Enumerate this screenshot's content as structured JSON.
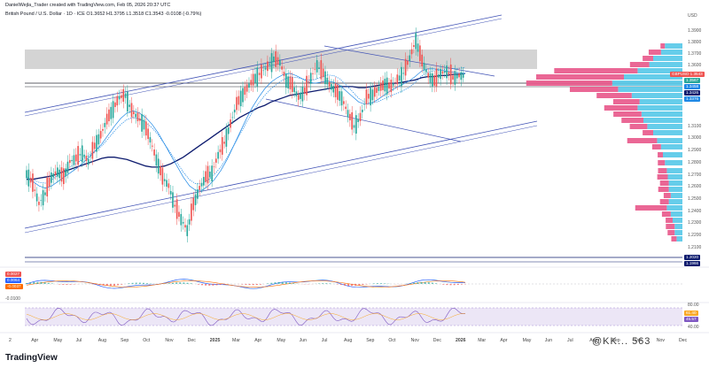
{
  "header": {
    "attribution": "DanielWejla_Trader created with TradingView.com, Feb 05, 2026 20:37 UTC",
    "symbol_line": "British Pound / U.S. Dollar · 1D · ICE  O1.3652  H1.3795  L1.3518  C1.3543  -0.0108 (-0.79%)"
  },
  "colors": {
    "price_up": "#26a69a",
    "price_down": "#ef5350",
    "channel": "#3f51b5",
    "ma_long": "#0d1b6e",
    "ma_short": "#1e88e5",
    "resistance_zone": "#cccccc",
    "profile_buy": "#55c8e8",
    "profile_sell": "#e8578a",
    "rsi_band": "#ece6f6"
  },
  "axis": {
    "currency": "USD",
    "price_ticks": [
      "1.3900",
      "1.3800",
      "1.3700",
      "1.3600",
      "1.3100",
      "1.3000",
      "1.2900",
      "1.2800",
      "1.2700",
      "1.2600",
      "1.2500",
      "1.2400",
      "1.2300",
      "1.2200",
      "1.2100"
    ],
    "months": [
      "2",
      "Apr",
      "May",
      "Jul",
      "Aug",
      "Sep",
      "Oct",
      "Nov",
      "Dec",
      "2025",
      "Mar",
      "Apr",
      "May",
      "Jun",
      "Jul",
      "Aug",
      "Sep",
      "Oct",
      "Nov",
      "Dec",
      "2026",
      "Mar",
      "Apr",
      "May",
      "Jun",
      "Jul",
      "Aug",
      "Sep",
      "Oct",
      "Nov",
      "Dec"
    ]
  },
  "price_tags": [
    {
      "label": "GBPUSD  1.3543",
      "color": "#ef5350"
    },
    {
      "label": "1.3567",
      "color": "#26a69a"
    },
    {
      "label": "1.3458",
      "color": "#1e88e5"
    },
    {
      "label": "1.3426",
      "color": "#0d1b6e"
    },
    {
      "label": "1.3376",
      "color": "#1e88e5"
    },
    {
      "label": "1.2020",
      "color": "#0d1b6e"
    },
    {
      "label": "1.1966",
      "color": "#0d1b6e"
    }
  ],
  "macd": {
    "tags": [
      "0.0027",
      "0.0064",
      "-0.0037"
    ],
    "tick": "-0.0100"
  },
  "rsi": {
    "ticks": [
      "80.00",
      "40.00"
    ],
    "tags": [
      "61.40",
      "45.57"
    ]
  },
  "brand": "TradingView",
  "watermark": "@KK... 563",
  "chart_data": {
    "type": "line",
    "title": "British Pound / U.S. Dollar · 1D · ICE",
    "ylabel": "USD",
    "ylim": [
      1.19,
      1.4
    ],
    "x": [
      0,
      2,
      4,
      6,
      8,
      10,
      12,
      14,
      16,
      18,
      20,
      22,
      24,
      26,
      28,
      30,
      32,
      34,
      36,
      38,
      40,
      42,
      44,
      46,
      48,
      50,
      52,
      54,
      56,
      58,
      60,
      62,
      64,
      66,
      68,
      70,
      72,
      74,
      76,
      78,
      80,
      82,
      84,
      86,
      88,
      90,
      92,
      94,
      96,
      98,
      100,
      102,
      104,
      106,
      108,
      110,
      112,
      114,
      116,
      118,
      120,
      122,
      124,
      126,
      128,
      130,
      132,
      134,
      136,
      138,
      140
    ],
    "series": [
      {
        "name": "GBPUSD",
        "values": [
          1.265,
          1.256,
          1.238,
          1.247,
          1.262,
          1.267,
          1.262,
          1.276,
          1.279,
          1.284,
          1.276,
          1.29,
          1.3,
          1.314,
          1.324,
          1.334,
          1.336,
          1.322,
          1.316,
          1.31,
          1.296,
          1.278,
          1.262,
          1.254,
          1.236,
          1.224,
          1.214,
          1.237,
          1.252,
          1.262,
          1.266,
          1.282,
          1.293,
          1.31,
          1.328,
          1.337,
          1.345,
          1.352,
          1.357,
          1.362,
          1.369,
          1.366,
          1.35,
          1.345,
          1.334,
          1.34,
          1.352,
          1.363,
          1.356,
          1.346,
          1.34,
          1.334,
          1.32,
          1.308,
          1.316,
          1.334,
          1.337,
          1.342,
          1.346,
          1.344,
          1.35,
          1.356,
          1.37,
          1.386,
          1.367,
          1.354,
          1.349,
          1.356,
          1.358,
          1.352,
          1.354
        ]
      },
      {
        "name": "MA long",
        "values": [
          1.26,
          1.26,
          1.261,
          1.262,
          1.263,
          1.265,
          1.267,
          1.269,
          1.271,
          1.273,
          1.275,
          1.277,
          1.279,
          1.28,
          1.28,
          1.279,
          1.278,
          1.276,
          1.274,
          1.272,
          1.271,
          1.271,
          1.272,
          1.274,
          1.277,
          1.28,
          1.284,
          1.288,
          1.292,
          1.296,
          1.3,
          1.304,
          1.308,
          1.312,
          1.316,
          1.319,
          1.322,
          1.325,
          1.327,
          1.33,
          1.332,
          1.334,
          1.336,
          1.337,
          1.338,
          1.339,
          1.34,
          1.341,
          1.342,
          1.343,
          1.344,
          1.344,
          1.344,
          1.343,
          1.343,
          1.344,
          1.345,
          1.346,
          1.347,
          1.347,
          1.348,
          1.349,
          1.35,
          1.352,
          1.353,
          1.353,
          1.354,
          1.354,
          1.355,
          1.355,
          1.356
        ]
      },
      {
        "name": "MA short",
        "values": [
          1.262,
          1.258,
          1.254,
          1.252,
          1.254,
          1.258,
          1.262,
          1.266,
          1.27,
          1.275,
          1.28,
          1.286,
          1.292,
          1.3,
          1.308,
          1.315,
          1.32,
          1.322,
          1.32,
          1.316,
          1.31,
          1.302,
          1.292,
          1.282,
          1.272,
          1.262,
          1.254,
          1.25,
          1.25,
          1.254,
          1.26,
          1.268,
          1.278,
          1.29,
          1.302,
          1.314,
          1.325,
          1.334,
          1.342,
          1.348,
          1.352,
          1.355,
          1.356,
          1.354,
          1.351,
          1.348,
          1.347,
          1.348,
          1.349,
          1.348,
          1.345,
          1.34,
          1.335,
          1.33,
          1.328,
          1.329,
          1.332,
          1.336,
          1.34,
          1.343,
          1.346,
          1.349,
          1.353,
          1.358,
          1.36,
          1.36,
          1.359,
          1.358,
          1.357,
          1.356,
          1.356
        ]
      }
    ],
    "annotations": [
      "ascending channel",
      "resistance zone 1.3600–1.3750",
      "volume profile"
    ]
  }
}
